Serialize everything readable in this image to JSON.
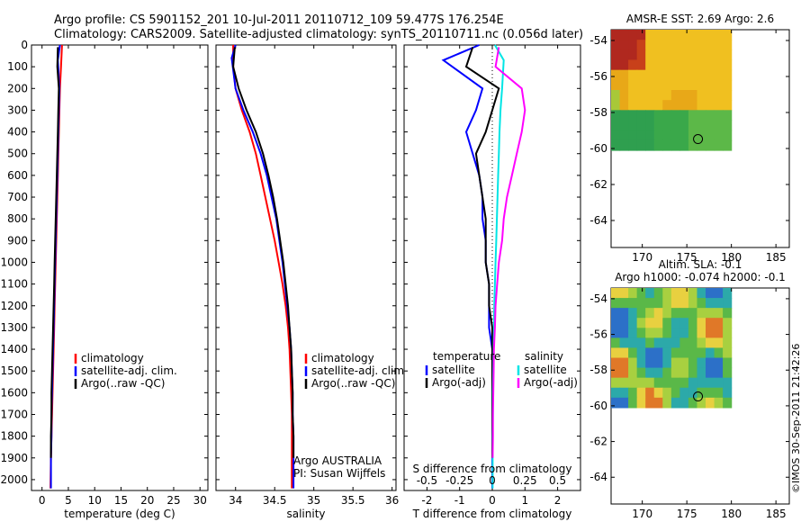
{
  "title_line1": "Argo profile: CS 5901152_201 10-Jul-2011 20110712_109 59.477S 176.254E",
  "title_line2": "Climatology: CARS2009. Satellite-adjusted climatology: synTS_20110711.nc (0.056d later)",
  "colors": {
    "climatology": "#ff0000",
    "satellite": "#0000ff",
    "argo": "#000000",
    "sat_cyan": "#00e5e5",
    "argo_magenta": "#ff00ff"
  },
  "depth_ticks": [
    0,
    100,
    200,
    300,
    400,
    500,
    600,
    700,
    800,
    900,
    1000,
    1100,
    1200,
    1300,
    1400,
    1500,
    1600,
    1700,
    1800,
    1900,
    2000
  ],
  "temperature_panel": {
    "xlabel": "temperature (deg C)",
    "xlim": [
      -2,
      31.5
    ],
    "xticks": [
      0,
      5,
      10,
      15,
      20,
      25,
      30
    ],
    "legend": [
      "climatology",
      "satellite-adj. clim.",
      "Argo(..raw -QC)"
    ]
  },
  "salinity_panel": {
    "xlabel": "salinity",
    "xlim": [
      33.75,
      36.05
    ],
    "xticks": [
      34,
      34.5,
      35,
      35.5,
      36
    ],
    "legend": [
      "climatology",
      "satellite-adj. clim.",
      "Argo(..raw -QC)"
    ],
    "note1": "Argo AUSTRALIA",
    "note2": "PI: Susan Wijffels"
  },
  "diff_panel": {
    "xlabel_bottom": "T difference from climatology",
    "xlabel_top": "S difference from climatology",
    "t_xlim": [
      -2.7,
      2.7
    ],
    "t_xticks": [
      -2,
      -1,
      0,
      1,
      2
    ],
    "s_xticks_labels": [
      "-0.5",
      "-0.25",
      "0",
      "0.25",
      "0.5"
    ],
    "legend_left_title": "temperature",
    "legend_right_title": "salinity",
    "legend_left": [
      "satellite",
      "Argo(-adj)"
    ],
    "legend_right": [
      "satellite",
      "Argo(-adj)"
    ]
  },
  "sst_map": {
    "title": "AMSR-E SST: 2.69 Argo: 2.6",
    "xticks": [
      170,
      175,
      180,
      185
    ],
    "yticks": [
      -54,
      -56,
      -58,
      -60,
      -62,
      -64
    ]
  },
  "sla_map": {
    "title1": "Altim. SLA: -0.1",
    "title2": "Argo h1000: -0.074 h2000: -0.1",
    "xticks": [
      170,
      175,
      180,
      185
    ],
    "yticks": [
      -54,
      -56,
      -58,
      -60,
      -62,
      -64
    ]
  },
  "credit": "©IMOS 30-Sep-2011 21:42:26",
  "chart_data": [
    {
      "type": "line",
      "title": "temperature",
      "xlabel": "temperature (deg C)",
      "ylabel": "",
      "ylim": [
        2050,
        0
      ],
      "xlim": [
        -2,
        31.5
      ],
      "series": [
        {
          "name": "climatology",
          "x": [
            3.8,
            3.6,
            3.4,
            3.3,
            3.2,
            3.1,
            3.0,
            2.9,
            2.8,
            2.7,
            2.6,
            2.5,
            2.4,
            2.3,
            2.2,
            2.1,
            2.0,
            1.9,
            1.8,
            1.7,
            1.6
          ],
          "y": [
            0,
            100,
            200,
            300,
            400,
            500,
            600,
            700,
            800,
            900,
            1000,
            1100,
            1200,
            1300,
            1400,
            1500,
            1600,
            1700,
            1800,
            1900,
            2040
          ]
        },
        {
          "name": "satellite-adj. clim.",
          "x": [
            3.4,
            3.0,
            3.3,
            3.2,
            3.1,
            3.0,
            2.9,
            2.8,
            2.7,
            2.6,
            2.5,
            2.4,
            2.3,
            2.2,
            2.1,
            2.0,
            1.9,
            1.8,
            1.8,
            1.7,
            1.7
          ],
          "y": [
            0,
            70,
            200,
            300,
            400,
            500,
            600,
            700,
            800,
            900,
            1000,
            1100,
            1200,
            1300,
            1400,
            1500,
            1600,
            1700,
            1800,
            1900,
            2040
          ]
        },
        {
          "name": "Argo(..raw -QC)",
          "x": [
            3.0,
            2.9,
            3.2,
            3.1,
            3.0,
            2.9,
            2.8,
            2.7,
            2.6,
            2.5,
            2.4,
            2.3,
            2.2,
            2.1,
            2.0,
            1.9,
            1.8,
            1.8,
            1.7,
            1.7
          ],
          "y": [
            10,
            100,
            200,
            300,
            400,
            500,
            600,
            700,
            800,
            900,
            1000,
            1100,
            1200,
            1300,
            1400,
            1500,
            1600,
            1700,
            1800,
            1900
          ]
        }
      ]
    },
    {
      "type": "line",
      "title": "salinity",
      "xlabel": "salinity",
      "ylabel": "",
      "ylim": [
        2050,
        0
      ],
      "xlim": [
        33.75,
        36.05
      ],
      "series": [
        {
          "name": "climatology",
          "x": [
            33.97,
            33.97,
            34.0,
            34.08,
            34.18,
            34.26,
            34.32,
            34.38,
            34.44,
            34.5,
            34.55,
            34.6,
            34.64,
            34.67,
            34.69,
            34.7,
            34.71,
            34.72,
            34.72,
            34.72,
            34.72
          ],
          "y": [
            0,
            100,
            200,
            300,
            400,
            500,
            600,
            700,
            800,
            900,
            1000,
            1100,
            1200,
            1300,
            1400,
            1500,
            1600,
            1700,
            1800,
            1900,
            2040
          ]
        },
        {
          "name": "satellite-adj. clim.",
          "x": [
            34.0,
            33.95,
            34.0,
            34.1,
            34.22,
            34.32,
            34.4,
            34.46,
            34.52,
            34.56,
            34.6,
            34.63,
            34.66,
            34.69,
            34.71,
            34.72,
            34.73,
            34.73,
            34.74,
            34.74,
            34.74
          ],
          "y": [
            0,
            60,
            200,
            300,
            400,
            500,
            600,
            700,
            800,
            900,
            1000,
            1100,
            1200,
            1300,
            1400,
            1500,
            1600,
            1700,
            1800,
            1900,
            2040
          ]
        },
        {
          "name": "Argo(..raw -QC)",
          "x": [
            33.99,
            33.97,
            34.04,
            34.14,
            34.26,
            34.35,
            34.42,
            34.48,
            34.53,
            34.57,
            34.61,
            34.64,
            34.67,
            34.69,
            34.71,
            34.72,
            34.73,
            34.73,
            34.74,
            34.74
          ],
          "y": [
            10,
            100,
            200,
            300,
            400,
            500,
            600,
            700,
            800,
            900,
            1000,
            1100,
            1200,
            1300,
            1400,
            1500,
            1600,
            1700,
            1800,
            1900
          ]
        }
      ]
    },
    {
      "type": "line",
      "title": "T difference from climatology",
      "xlabel": "T difference from climatology",
      "ylabel": "",
      "ylim": [
        2050,
        0
      ],
      "xlim": [
        -2.7,
        2.7
      ],
      "series": [
        {
          "name": "temperature satellite",
          "x": [
            -0.4,
            -1.5,
            -0.3,
            -0.5,
            -0.8,
            -0.6,
            -0.4,
            -0.3,
            -0.3,
            -0.2,
            -0.2,
            -0.1,
            -0.1,
            -0.1,
            0,
            0,
            0,
            0,
            0,
            0,
            0
          ],
          "y": [
            0,
            70,
            200,
            300,
            400,
            500,
            600,
            700,
            800,
            900,
            1000,
            1100,
            1200,
            1300,
            1400,
            1500,
            1600,
            1700,
            1800,
            1900,
            2040
          ]
        },
        {
          "name": "temperature Argo(-adj)",
          "x": [
            -0.6,
            -0.8,
            0.2,
            0,
            -0.2,
            -0.5,
            -0.4,
            -0.3,
            -0.2,
            -0.2,
            -0.2,
            -0.1,
            -0.1,
            0,
            0,
            0,
            0,
            0,
            0,
            0
          ],
          "y": [
            10,
            100,
            200,
            300,
            400,
            500,
            600,
            700,
            800,
            900,
            1000,
            1100,
            1200,
            1300,
            1400,
            1500,
            1600,
            1700,
            1800,
            1900
          ]
        },
        {
          "name": "salinity satellite",
          "x": [
            0.08,
            0.35,
            0.3,
            0.25,
            0.22,
            0.2,
            0.18,
            0.16,
            0.14,
            0.12,
            0.1,
            0.08,
            0.06,
            0.05,
            0.04,
            0.03,
            0.02,
            0.02,
            0.01,
            0.01,
            0.01
          ],
          "y": [
            0,
            70,
            200,
            300,
            400,
            500,
            600,
            700,
            800,
            900,
            1000,
            1100,
            1200,
            1300,
            1400,
            1500,
            1600,
            1700,
            1800,
            1900,
            2040
          ]
        },
        {
          "name": "salinity Argo(-adj)",
          "x": [
            0.2,
            0.1,
            0.9,
            1.0,
            0.9,
            0.75,
            0.6,
            0.45,
            0.35,
            0.3,
            0.2,
            0.15,
            0.1,
            0.08,
            0.05,
            0.04,
            0.03,
            0.02,
            0.02,
            0.01
          ],
          "y": [
            10,
            100,
            200,
            300,
            400,
            500,
            600,
            700,
            800,
            900,
            1000,
            1100,
            1200,
            1300,
            1400,
            1500,
            1600,
            1700,
            1800,
            1900
          ]
        }
      ]
    },
    {
      "type": "heatmap",
      "title": "AMSR-E SST: 2.69 Argo: 2.6",
      "xlabel": "",
      "ylabel": "",
      "xlim": [
        166.5,
        186.5
      ],
      "ylim": [
        -65.5,
        -53.4
      ],
      "extent": {
        "lon": [
          166.5,
          180
        ],
        "lat": [
          -60.1,
          -53.4
        ]
      },
      "marker": {
        "lon": 176.254,
        "lat": -59.477
      }
    },
    {
      "type": "heatmap",
      "title": "Altim. SLA: -0.1",
      "xlabel": "",
      "ylabel": "",
      "xlim": [
        166.5,
        186.5
      ],
      "ylim": [
        -65.5,
        -53.4
      ],
      "extent": {
        "lon": [
          166.5,
          180
        ],
        "lat": [
          -60.1,
          -53.4
        ]
      },
      "marker": {
        "lon": 176.254,
        "lat": -59.477
      }
    }
  ]
}
